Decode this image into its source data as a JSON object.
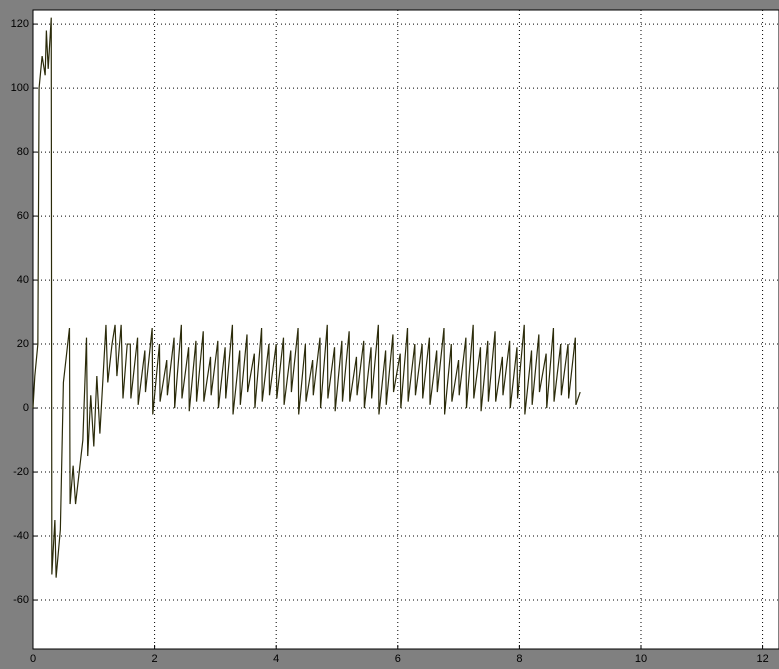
{
  "chart_data": {
    "type": "line",
    "color": "#2b2b0a",
    "grid": true,
    "xlim": [
      0,
      12.27
    ],
    "ylim": [
      -75.3,
      124.4
    ],
    "xticks": [
      0,
      2,
      4,
      6,
      8,
      10,
      12
    ],
    "yticks": [
      -60,
      -40,
      -20,
      0,
      20,
      40,
      60,
      80,
      100,
      120
    ],
    "x": [
      0,
      0.03,
      0.08,
      0.1,
      0.15,
      0.2,
      0.22,
      0.25,
      0.3,
      0.31,
      0.36,
      0.38,
      0.45,
      0.5,
      0.6,
      0.61,
      0.66,
      0.7,
      0.76,
      0.82,
      0.88,
      0.9,
      0.95,
      1.0,
      1.05,
      1.1,
      1.2,
      1.23,
      1.3,
      1.35,
      1.38,
      1.45,
      1.48,
      1.55,
      1.6,
      1.61,
      1.72,
      1.73,
      1.84,
      1.85,
      1.96,
      1.97,
      2.08,
      2.09,
      2.2,
      2.21,
      2.32,
      2.33,
      2.44,
      2.45,
      2.56,
      2.57,
      2.68,
      2.69,
      2.8,
      2.81,
      2.92,
      2.93,
      3.04,
      3.05,
      3.16,
      3.17,
      3.28,
      3.29,
      3.4,
      3.41,
      3.52,
      3.53,
      3.64,
      3.65,
      3.76,
      3.77,
      3.88,
      3.89,
      4.0,
      4.01,
      4.12,
      4.13,
      4.24,
      4.25,
      4.36,
      4.37,
      4.48,
      4.49,
      4.6,
      4.61,
      4.72,
      4.73,
      4.84,
      4.85,
      4.96,
      4.97,
      5.08,
      5.09,
      5.2,
      5.21,
      5.32,
      5.33,
      5.44,
      5.45,
      5.56,
      5.57,
      5.68,
      5.69,
      5.8,
      5.81,
      5.92,
      5.93,
      6.04,
      6.05,
      6.16,
      6.17,
      6.28,
      6.29,
      6.4,
      6.41,
      6.52,
      6.53,
      6.64,
      6.65,
      6.76,
      6.77,
      6.88,
      6.89,
      7.0,
      7.01,
      7.12,
      7.13,
      7.24,
      7.25,
      7.36,
      7.37,
      7.48,
      7.49,
      7.6,
      7.61,
      7.72,
      7.73,
      7.84,
      7.85,
      7.96,
      7.97,
      8.08,
      8.09,
      8.2,
      8.21,
      8.32,
      8.33,
      8.44,
      8.45,
      8.56,
      8.57,
      8.68,
      8.69,
      8.8,
      8.81,
      8.92,
      8.93,
      9.0
    ],
    "values": [
      0,
      10,
      20,
      100,
      110,
      104,
      118,
      106,
      122,
      -52,
      -35,
      -53,
      -38,
      8,
      25,
      -30,
      -18,
      -30,
      -20,
      -10,
      22,
      -15,
      4,
      -12,
      10,
      -8,
      26,
      8,
      20,
      26,
      10,
      26,
      3,
      20,
      20,
      3,
      22,
      1,
      18,
      5,
      25,
      -2,
      20,
      2,
      15,
      4,
      22,
      0,
      26,
      3,
      19,
      -1,
      21,
      2,
      24,
      2,
      16,
      4,
      21,
      0,
      19,
      3,
      26,
      -2,
      18,
      1,
      23,
      5,
      17,
      0,
      25,
      2,
      20,
      4,
      20,
      3,
      22,
      1,
      18,
      5,
      25,
      -2,
      20,
      2,
      15,
      4,
      22,
      0,
      26,
      3,
      19,
      -1,
      21,
      2,
      24,
      2,
      16,
      4,
      21,
      0,
      19,
      3,
      26,
      -2,
      18,
      1,
      23,
      5,
      17,
      0,
      25,
      2,
      20,
      4,
      20,
      3,
      22,
      1,
      18,
      5,
      25,
      -2,
      20,
      2,
      15,
      4,
      22,
      0,
      26,
      3,
      19,
      -1,
      21,
      2,
      24,
      2,
      16,
      4,
      21,
      0,
      19,
      3,
      26,
      -2,
      18,
      1,
      23,
      5,
      17,
      0,
      25,
      2,
      20,
      4,
      20,
      3,
      22,
      1,
      5
    ]
  }
}
